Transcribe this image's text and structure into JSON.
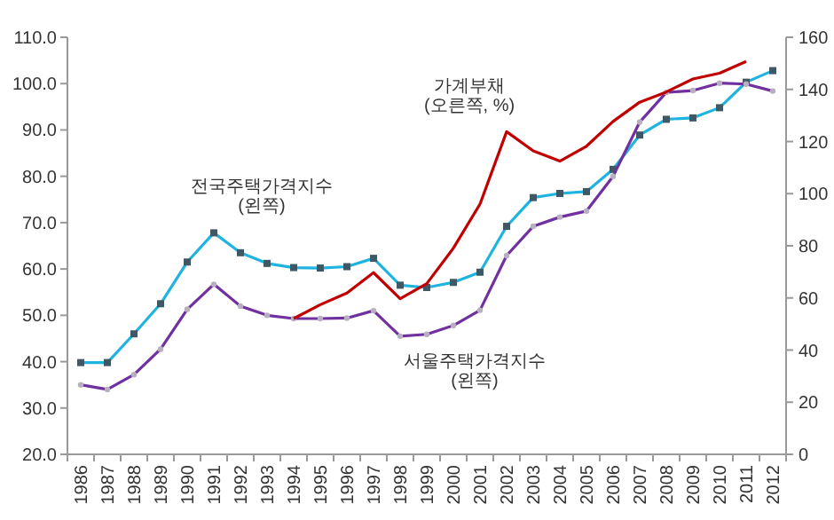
{
  "chart_data": {
    "type": "line",
    "categories": [
      "1986",
      "1987",
      "1988",
      "1989",
      "1990",
      "1991",
      "1992",
      "1993",
      "1994",
      "1995",
      "1996",
      "1997",
      "1998",
      "1999",
      "2000",
      "2001",
      "2002",
      "2003",
      "2004",
      "2005",
      "2006",
      "2007",
      "2008",
      "2009",
      "2010",
      "2011",
      "2012"
    ],
    "series": [
      {
        "name": "전국주택가격지수 (왼쪽)",
        "color": "#1fb4e0",
        "marker": "square",
        "values": [
          39.8,
          39.8,
          46,
          52.5,
          61.5,
          67.8,
          63.5,
          61.2,
          60.3,
          60.2,
          60.5,
          62.3,
          56.5,
          56,
          57.1,
          59.3,
          69.2,
          75.4,
          76.3,
          76.7,
          81.5,
          88.9,
          92.3,
          92.6,
          94.8,
          100.3,
          102.8
        ]
      },
      {
        "name": "서울주택가격지수 (왼쪽)",
        "color": "#7030a0",
        "marker": "circle",
        "values": [
          35,
          34,
          37.2,
          42.7,
          51.3,
          56.7,
          52,
          50,
          49.3,
          49.3,
          49.4,
          51,
          45.5,
          45.9,
          47.8,
          51.1,
          62.9,
          69.2,
          71.2,
          72.5,
          80,
          91.7,
          98.1,
          98.5,
          100.1,
          99.9,
          98.4
        ]
      },
      {
        "name": "가계부채 (오른쪽, %)",
        "color": "#c00000",
        "marker": "none",
        "axis": "y2",
        "values": [
          null,
          null,
          null,
          null,
          null,
          null,
          null,
          null,
          52.1,
          57.4,
          61.9,
          69.7,
          59.7,
          65.5,
          79.1,
          96,
          123.8,
          116.4,
          112.5,
          118.2,
          127.7,
          135.1,
          139,
          144,
          146.2,
          150.7,
          null
        ]
      }
    ],
    "ylim": [
      20,
      110
    ],
    "yticks": [
      {
        "value": 20,
        "label": "20.0"
      },
      {
        "value": 30,
        "label": "30.0"
      },
      {
        "value": 40,
        "label": "40.0"
      },
      {
        "value": 50,
        "label": "50.0"
      },
      {
        "value": 60,
        "label": "60.0"
      },
      {
        "value": 70,
        "label": "70.0"
      },
      {
        "value": 80,
        "label": "80.0"
      },
      {
        "value": 90,
        "label": "90.0"
      },
      {
        "value": 100,
        "label": "100.0"
      },
      {
        "value": 110,
        "label": "110.0"
      }
    ],
    "y2lim": [
      0,
      160
    ],
    "y2ticks": [
      0,
      20,
      40,
      60,
      80,
      100,
      120,
      140,
      160
    ],
    "grid": false
  }
}
